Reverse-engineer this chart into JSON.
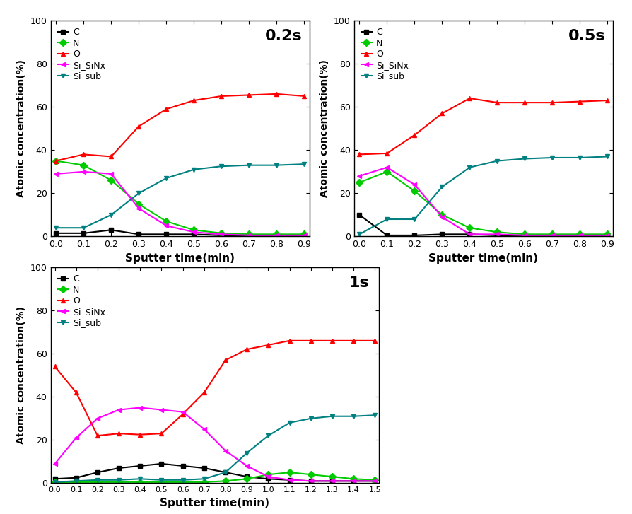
{
  "plot02s": {
    "title": "0.2s",
    "x": [
      0.0,
      0.1,
      0.2,
      0.3,
      0.4,
      0.5,
      0.6,
      0.7,
      0.8,
      0.9
    ],
    "C": [
      1.5,
      1.5,
      3.0,
      1.0,
      1.0,
      1.0,
      0.5,
      0.5,
      0.5,
      0.5
    ],
    "N": [
      35.0,
      33.0,
      26.0,
      15.0,
      7.0,
      3.0,
      1.5,
      1.0,
      1.0,
      1.0
    ],
    "O": [
      35.0,
      38.0,
      37.0,
      51.0,
      59.0,
      63.0,
      65.0,
      65.5,
      66.0,
      65.0
    ],
    "Si_SiNx": [
      29.0,
      30.0,
      29.0,
      13.0,
      5.0,
      2.0,
      1.0,
      0.5,
      0.5,
      0.5
    ],
    "Si_sub": [
      4.0,
      4.0,
      10.0,
      20.0,
      27.0,
      31.0,
      32.5,
      33.0,
      33.0,
      33.5
    ],
    "xlim": [
      -0.02,
      0.92
    ],
    "xticks": [
      0.0,
      0.1,
      0.2,
      0.3,
      0.4,
      0.5,
      0.6,
      0.7,
      0.8,
      0.9
    ]
  },
  "plot05s": {
    "title": "0.5s",
    "x": [
      0.0,
      0.1,
      0.2,
      0.3,
      0.4,
      0.5,
      0.6,
      0.7,
      0.8,
      0.9
    ],
    "C": [
      10.0,
      0.5,
      0.5,
      1.0,
      1.0,
      0.5,
      0.5,
      0.5,
      0.5,
      0.5
    ],
    "N": [
      25.0,
      30.0,
      21.0,
      10.0,
      4.0,
      2.0,
      1.0,
      1.0,
      1.0,
      1.0
    ],
    "O": [
      38.0,
      38.5,
      47.0,
      57.0,
      64.0,
      62.0,
      62.0,
      62.0,
      62.5,
      63.0
    ],
    "Si_SiNx": [
      28.0,
      32.0,
      24.0,
      9.0,
      1.0,
      1.0,
      0.5,
      0.5,
      0.5,
      0.5
    ],
    "Si_sub": [
      1.0,
      8.0,
      8.0,
      23.0,
      32.0,
      35.0,
      36.0,
      36.5,
      36.5,
      37.0
    ],
    "xlim": [
      -0.02,
      0.92
    ],
    "xticks": [
      0.0,
      0.1,
      0.2,
      0.3,
      0.4,
      0.5,
      0.6,
      0.7,
      0.8,
      0.9
    ]
  },
  "plot1s": {
    "title": "1s",
    "x": [
      0.0,
      0.1,
      0.2,
      0.3,
      0.4,
      0.5,
      0.6,
      0.7,
      0.8,
      0.9,
      1.0,
      1.1,
      1.2,
      1.3,
      1.4,
      1.5
    ],
    "C": [
      2.0,
      2.5,
      5.0,
      7.0,
      8.0,
      9.0,
      8.0,
      7.0,
      5.0,
      3.0,
      2.0,
      1.5,
      1.0,
      1.0,
      1.0,
      1.0
    ],
    "N": [
      0.5,
      0.5,
      0.5,
      0.5,
      0.5,
      0.5,
      0.5,
      0.5,
      1.0,
      2.0,
      4.0,
      5.0,
      4.0,
      3.0,
      2.0,
      1.5
    ],
    "O": [
      54.0,
      42.0,
      22.0,
      23.0,
      22.5,
      23.0,
      32.0,
      42.0,
      57.0,
      62.0,
      64.0,
      66.0,
      66.0,
      66.0,
      66.0,
      66.0
    ],
    "Si_SiNx": [
      9.0,
      21.0,
      30.0,
      34.0,
      35.0,
      34.0,
      33.0,
      25.0,
      15.0,
      8.0,
      3.0,
      1.5,
      1.0,
      1.0,
      1.0,
      1.0
    ],
    "Si_sub": [
      0.5,
      1.0,
      1.5,
      1.5,
      2.0,
      1.5,
      1.5,
      2.0,
      5.0,
      14.0,
      22.0,
      28.0,
      30.0,
      31.0,
      31.0,
      31.5
    ],
    "xlim": [
      -0.02,
      1.52
    ],
    "xticks": [
      0.0,
      0.1,
      0.2,
      0.3,
      0.4,
      0.5,
      0.6,
      0.7,
      0.8,
      0.9,
      1.0,
      1.1,
      1.2,
      1.3,
      1.4,
      1.5
    ]
  },
  "colors": {
    "C": "#000000",
    "N": "#00cc00",
    "O": "#ff0000",
    "Si_SiNx": "#ff00ff",
    "Si_sub": "#008080"
  },
  "markers": {
    "C": "s",
    "N": "D",
    "O": "^",
    "Si_SiNx": "<",
    "Si_sub": "v"
  },
  "markersize": 5,
  "linewidth": 1.5,
  "ylim": [
    0,
    100
  ],
  "yticks": [
    0,
    20,
    40,
    60,
    80,
    100
  ],
  "ylabel": "Atomic concentration(%)",
  "xlabel": "Sputter time(min)",
  "title_fontsize": 16,
  "label_fontsize": 11,
  "tick_fontsize": 9,
  "legend_fontsize": 9
}
